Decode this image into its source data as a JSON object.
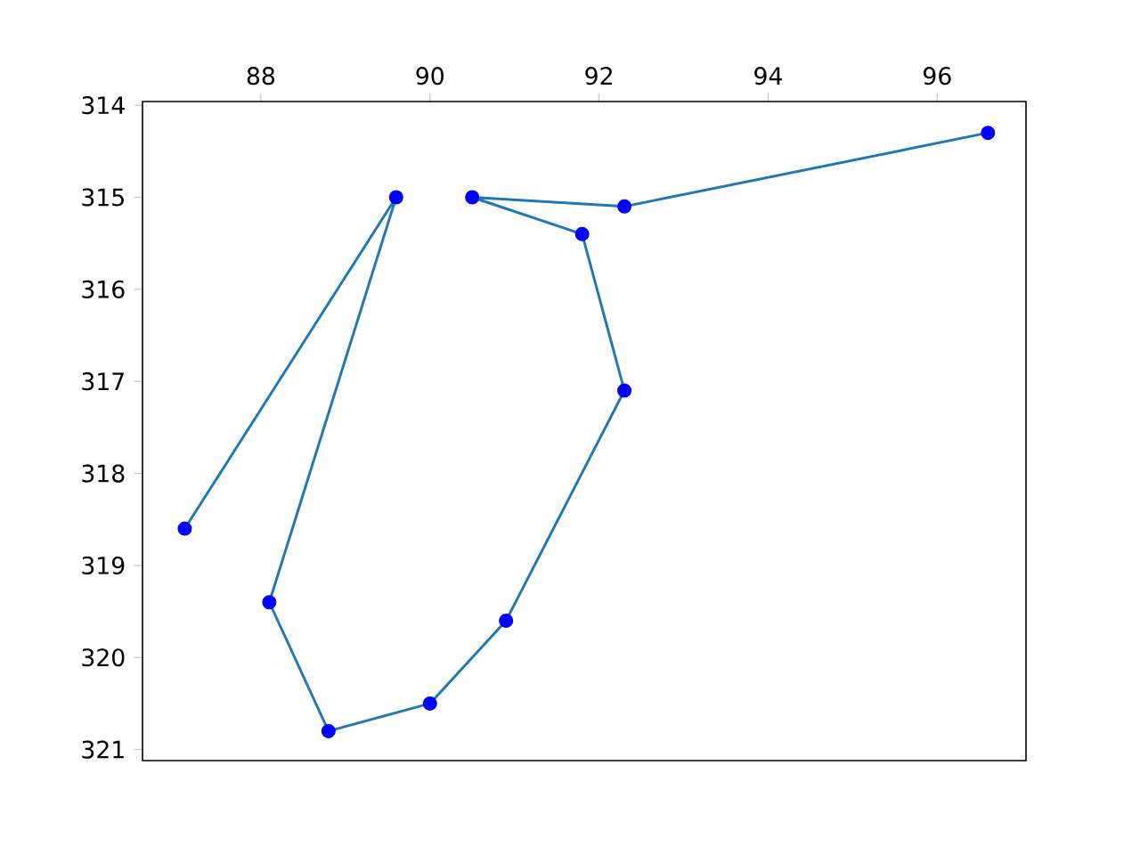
{
  "chart_data": {
    "type": "line",
    "xlim": [
      86.6,
      97.05
    ],
    "xticks": [
      88,
      90,
      92,
      94,
      96
    ],
    "ylim": [
      321.12,
      313.96
    ],
    "yticks": [
      314,
      315,
      316,
      317,
      318,
      319,
      320,
      321
    ],
    "series": [
      {
        "color": "#1f77b4",
        "x": [
          87.1,
          89.6,
          88.1,
          88.8,
          90.0,
          90.9,
          92.3,
          91.8,
          90.5,
          92.3,
          96.6
        ],
        "values": [
          318.6,
          315.0,
          319.4,
          320.8,
          320.5,
          319.6,
          317.1,
          315.4,
          315.0,
          315.1,
          314.3
        ]
      },
      {
        "type": "scatter",
        "marker": "circle",
        "color": "#0000ff",
        "x": [
          87.1,
          89.6,
          88.1,
          88.8,
          90.0,
          90.9,
          92.3,
          91.8,
          90.5,
          92.3,
          96.6
        ],
        "values": [
          318.6,
          315.0,
          319.4,
          320.8,
          320.5,
          319.6,
          317.1,
          315.4,
          315.0,
          315.1,
          314.3
        ]
      }
    ]
  }
}
